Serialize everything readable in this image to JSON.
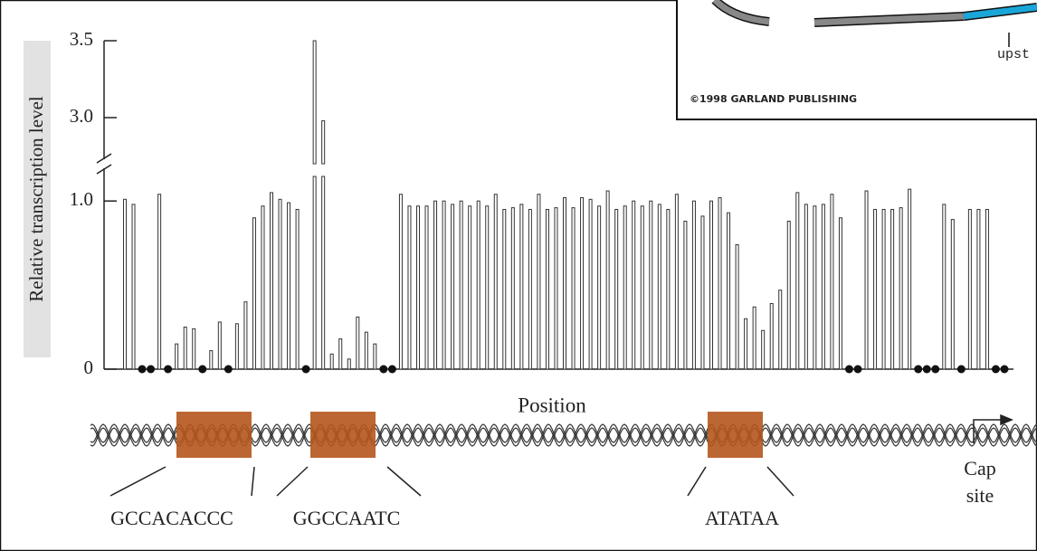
{
  "chart_data": {
    "type": "bar",
    "y_label": "Relative transcription level",
    "x_label": "Position",
    "categories": [
      null,
      null,
      null,
      null,
      null,
      null,
      null,
      null,
      null,
      null,
      null,
      null,
      null,
      null,
      null,
      null,
      null,
      null,
      null,
      null,
      null,
      null,
      null,
      null,
      null,
      null,
      null,
      null,
      null,
      null,
      null,
      null,
      null,
      null,
      null,
      null,
      null,
      null,
      null,
      null,
      null,
      null,
      null,
      null,
      null,
      null,
      null,
      null,
      null,
      null,
      null,
      null,
      null,
      null,
      null,
      null,
      null,
      null,
      null,
      null,
      null,
      null,
      null,
      null,
      null,
      null,
      null,
      null,
      null,
      null,
      null,
      null,
      null,
      null,
      null,
      null,
      null,
      null,
      null,
      null,
      null,
      null,
      null,
      null,
      null,
      null,
      null,
      null,
      null,
      null,
      null,
      null,
      null,
      null,
      null,
      null,
      null,
      null,
      null,
      null,
      null,
      null,
      null
    ],
    "values": [
      1.01,
      0.98,
      0,
      0,
      1.04,
      0,
      0.15,
      0.25,
      0.24,
      0,
      0.11,
      0.28,
      0,
      0.27,
      0.4,
      0.9,
      0.97,
      1.05,
      1.01,
      0.99,
      0.95,
      0,
      3.5,
      2.98,
      0.09,
      0.18,
      0.06,
      0.31,
      0.22,
      0.15,
      0,
      0,
      1.04,
      0.97,
      0.97,
      0.97,
      1.0,
      1.0,
      0.98,
      1.0,
      0.97,
      1.0,
      0.97,
      1.04,
      0.95,
      0.96,
      0.98,
      0.95,
      1.04,
      0.95,
      0.96,
      1.02,
      0.96,
      1.02,
      1.01,
      0.97,
      1.06,
      0.95,
      0.97,
      1.0,
      0.97,
      1.0,
      0.98,
      0.95,
      1.04,
      0.88,
      1.0,
      0.91,
      1.0,
      1.02,
      0.93,
      0.74,
      0.3,
      0.37,
      0.23,
      0.39,
      0.47,
      0.88,
      1.05,
      0.98,
      0.97,
      0.98,
      1.04,
      0.9,
      0,
      0,
      1.06,
      0.95,
      0.95,
      0.95,
      0.96,
      1.07,
      0,
      0,
      0,
      0.98,
      0.89,
      0,
      0.95,
      0.95,
      0.95,
      0,
      0
    ],
    "color": "#ffffff",
    "ylim": [
      0,
      3.5
    ],
    "ybreak": [
      1.2,
      2.7
    ],
    "yticks": [
      0,
      {
        "value": 1,
        "label": "1.0"
      },
      {
        "value": 3,
        "label": "3.0"
      },
      3.5
    ],
    "annotations": [
      "GCCACACCC",
      "GGCCAATC",
      "ATATAA"
    ],
    "cap_site": [
      "Cap",
      "site"
    ]
  },
  "inset": {
    "label": "upst",
    "credit": "©1998 GARLAND PUBLISHING"
  }
}
